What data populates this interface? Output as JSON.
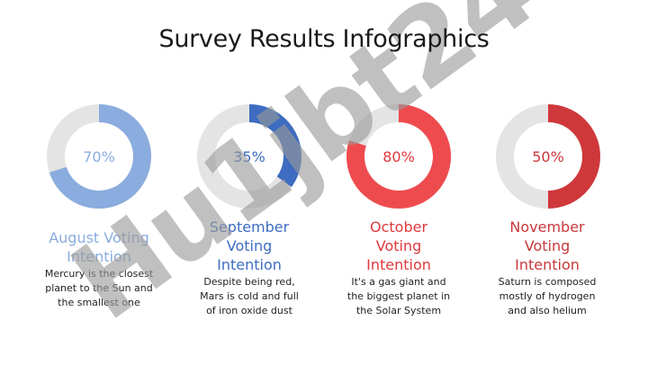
{
  "title": "Survey Results Infographics",
  "watermark": "Hu1jbt24",
  "chart_data": [
    {
      "type": "pie",
      "label": "70%",
      "value": 70,
      "title": "August Voting Intention",
      "description": "Mercury is the closest planet to the Sun and the smallest one",
      "fill_color": "#8aacde",
      "track_color": "#e4e4e4",
      "title_color": "#8aacde"
    },
    {
      "type": "pie",
      "label": "35%",
      "value": 35,
      "title": "September Voting Intention",
      "description": "Despite being red, Mars is cold and full of iron oxide dust",
      "fill_color": "#3d6cc0",
      "track_color": "#e4e4e4",
      "title_color": "#3d6cc0"
    },
    {
      "type": "pie",
      "label": "80%",
      "value": 80,
      "title": "October Voting Intention",
      "description": "It's a gas giant and the biggest planet in the Solar System",
      "fill_color": "#ee4b4f",
      "track_color": "#e4e4e4",
      "title_color": "#e0393d"
    },
    {
      "type": "pie",
      "label": "50%",
      "value": 50,
      "title": "November Voting Intention",
      "description": "Saturn is composed mostly of hydrogen and also helium",
      "fill_color": "#cf383b",
      "track_color": "#e4e4e4",
      "title_color": "#c8383b"
    }
  ]
}
